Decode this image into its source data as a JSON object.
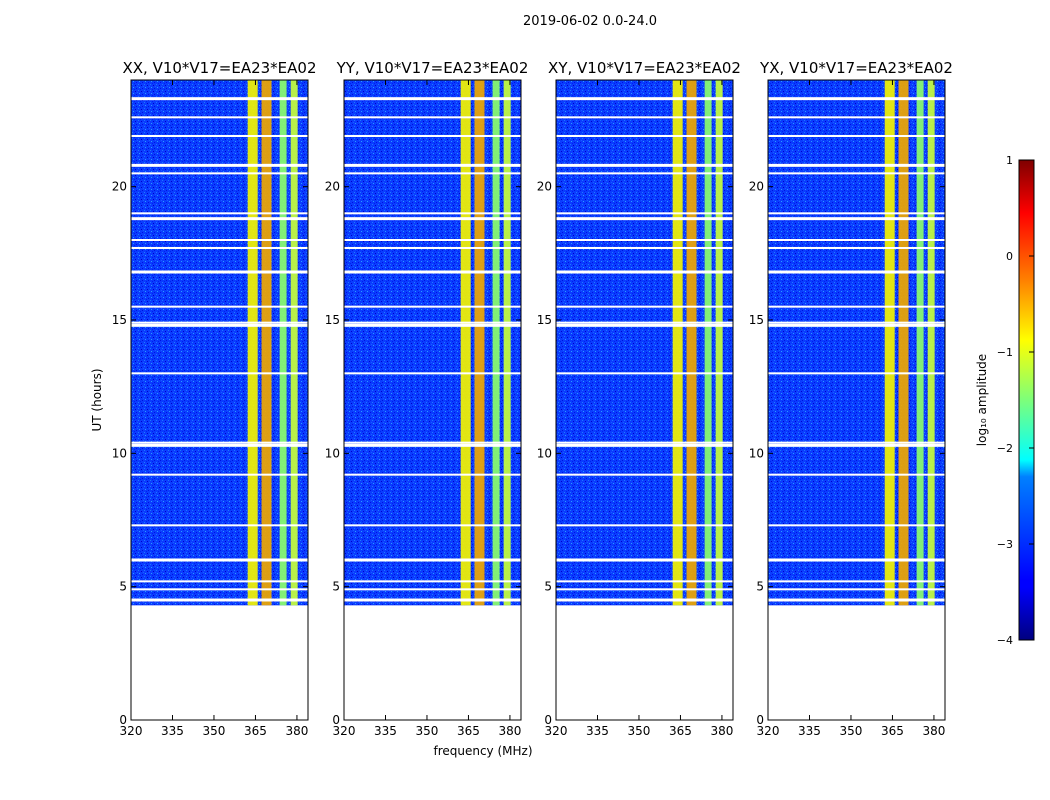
{
  "chart_data": {
    "type": "heatmap",
    "figure_title": "2019-06-02 0.0-24.0",
    "xlabel": "frequency (MHz)",
    "ylabel": "UT (hours)",
    "xlim": [
      320,
      384
    ],
    "ylim": [
      0,
      24
    ],
    "xticks": [
      "320",
      "335",
      "350",
      "365",
      "380"
    ],
    "yticks": [
      "0",
      "5",
      "10",
      "15",
      "20"
    ],
    "data_time_range": [
      4.3,
      24.0
    ],
    "panels": [
      {
        "title": "XX, V10*V17=EA23*EA02",
        "strong_channels_mhz": [
          364,
          369,
          375,
          379
        ]
      },
      {
        "title": "YY, V10*V17=EA23*EA02",
        "strong_channels_mhz": [
          364,
          369,
          375,
          379
        ]
      },
      {
        "title": "XY, V10*V17=EA23*EA02",
        "strong_channels_mhz": [
          364,
          369,
          375,
          379
        ]
      },
      {
        "title": "YX, V10*V17=EA23*EA02",
        "strong_channels_mhz": [
          364,
          369,
          375,
          379
        ]
      }
    ],
    "gap_hours": [
      4.5,
      4.9,
      5.2,
      6.0,
      7.3,
      9.2,
      10.3,
      10.4,
      13.0,
      14.8,
      14.9,
      15.5,
      16.8,
      17.7,
      18.0,
      18.8,
      19.0,
      20.5,
      20.8,
      21.9,
      22.6,
      23.3
    ],
    "colorbar": {
      "label": "log₁₀ amplitude",
      "range": [
        -4,
        1
      ],
      "ticks": [
        "1",
        "0",
        "−1",
        "−2",
        "−3",
        "−4"
      ],
      "colormap": "jet"
    }
  }
}
